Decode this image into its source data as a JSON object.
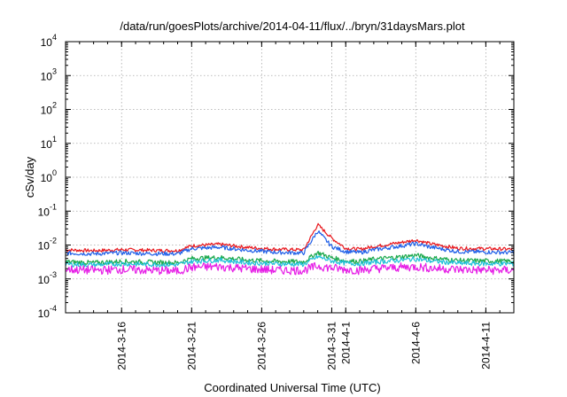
{
  "chart_data": {
    "type": "line",
    "title": "/data/run/goesPlots/archive/2014-04-11/flux/../bryn/31daysMars.plot",
    "xlabel": "Coordinated Universal Time (UTC)",
    "ylabel": "cSv/day",
    "y_scale": "log",
    "ylim": [
      0.0001,
      10000
    ],
    "y_ticks": [
      {
        "base": "10",
        "exp": "-4",
        "value": 0.0001
      },
      {
        "base": "10",
        "exp": "-3",
        "value": 0.001
      },
      {
        "base": "10",
        "exp": "-2",
        "value": 0.01
      },
      {
        "base": "10",
        "exp": "-1",
        "value": 0.1
      },
      {
        "base": "10",
        "exp": "0",
        "value": 1
      },
      {
        "base": "10",
        "exp": "1",
        "value": 10
      },
      {
        "base": "10",
        "exp": "2",
        "value": 100
      },
      {
        "base": "10",
        "exp": "3",
        "value": 1000
      },
      {
        "base": "10",
        "exp": "4",
        "value": 10000
      }
    ],
    "xlim": [
      "2014-03-12",
      "2014-04-13"
    ],
    "x_ticks": [
      "2014-3-16",
      "2014-3-21",
      "2014-3-26",
      "2014-3-31",
      "2014-4-1",
      "2014-4-6",
      "2014-4-11"
    ],
    "grid": true,
    "legend": "none",
    "x": [
      "2014-03-12",
      "2014-03-14",
      "2014-03-16",
      "2014-03-18",
      "2014-03-20",
      "2014-03-21",
      "2014-03-23",
      "2014-03-25",
      "2014-03-27",
      "2014-03-29",
      "2014-03-30",
      "2014-03-31",
      "2014-04-01",
      "2014-04-02",
      "2014-04-03",
      "2014-04-05",
      "2014-04-06",
      "2014-04-07",
      "2014-04-09",
      "2014-04-11",
      "2014-04-13"
    ],
    "series": [
      {
        "color": "#e8171d",
        "values": [
          0.0072,
          0.0068,
          0.0073,
          0.007,
          0.0068,
          0.0095,
          0.0105,
          0.0085,
          0.0075,
          0.0072,
          0.04,
          0.016,
          0.008,
          0.0075,
          0.009,
          0.012,
          0.014,
          0.011,
          0.008,
          0.0078,
          0.0075
        ]
      },
      {
        "color": "#1f5fe8",
        "values": [
          0.0058,
          0.0055,
          0.0059,
          0.0056,
          0.0055,
          0.0078,
          0.0086,
          0.007,
          0.0061,
          0.0058,
          0.026,
          0.009,
          0.0064,
          0.006,
          0.0072,
          0.0095,
          0.011,
          0.0088,
          0.0064,
          0.0062,
          0.006
        ]
      },
      {
        "color": "#1aa84a",
        "values": [
          0.0032,
          0.003,
          0.0033,
          0.0031,
          0.003,
          0.004,
          0.0043,
          0.0036,
          0.0033,
          0.0032,
          0.006,
          0.0042,
          0.0034,
          0.0033,
          0.0038,
          0.0045,
          0.005,
          0.0042,
          0.0035,
          0.0034,
          0.0033
        ]
      },
      {
        "color": "#20c0d8",
        "values": [
          0.0027,
          0.0026,
          0.0028,
          0.0027,
          0.0026,
          0.0033,
          0.0036,
          0.003,
          0.0028,
          0.0027,
          0.0045,
          0.0034,
          0.0029,
          0.0028,
          0.0031,
          0.0036,
          0.0039,
          0.0034,
          0.0029,
          0.0028,
          0.0028
        ]
      },
      {
        "color": "#e61ee6",
        "values": [
          0.0019,
          0.0018,
          0.0019,
          0.0018,
          0.0017,
          0.0022,
          0.0023,
          0.002,
          0.0018,
          0.0018,
          0.0024,
          0.0021,
          0.0019,
          0.0018,
          0.002,
          0.0022,
          0.0023,
          0.0021,
          0.0019,
          0.0018,
          0.0018
        ]
      }
    ]
  }
}
